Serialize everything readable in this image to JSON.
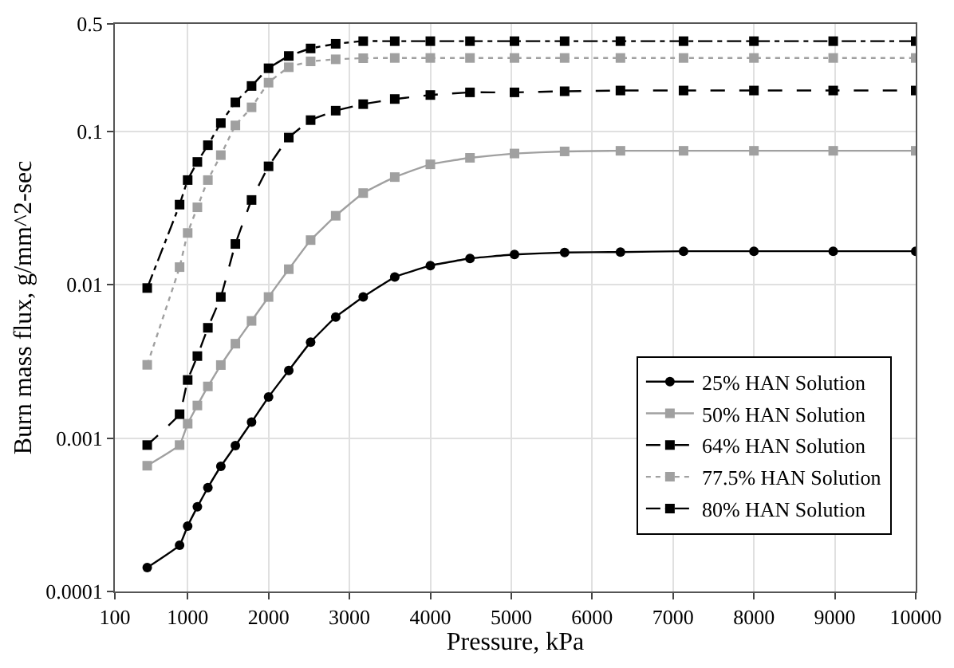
{
  "chart_data": {
    "type": "line",
    "xlabel": "Pressure, kPa",
    "ylabel": "Burn mass flux, g/mm^2-sec",
    "x": [
      500,
      900,
      1000,
      1120,
      1250,
      1410,
      1590,
      1790,
      2000,
      2250,
      2520,
      2830,
      3170,
      3560,
      4000,
      4490,
      5040,
      5660,
      6350,
      7130,
      8000,
      8980,
      10000
    ],
    "series": [
      {
        "name": "25% HAN Solution",
        "color": "#000000",
        "marker": "circle",
        "line_style": "solid",
        "values": [
          0.000143,
          0.0002,
          0.000267,
          0.000356,
          0.000475,
          0.000654,
          0.000893,
          0.00127,
          0.00185,
          0.00276,
          0.00422,
          0.00615,
          0.0083,
          0.0112,
          0.0133,
          0.0148,
          0.0157,
          0.0162,
          0.0163,
          0.0165,
          0.0165,
          0.0165,
          0.0165
        ]
      },
      {
        "name": "50% HAN Solution",
        "color": "#a0a0a0",
        "marker": "square",
        "line_style": "solid",
        "values": [
          0.00066,
          0.0009,
          0.00124,
          0.00163,
          0.00217,
          0.00299,
          0.00412,
          0.0058,
          0.0083,
          0.0126,
          0.0195,
          0.0281,
          0.0395,
          0.0502,
          0.0608,
          0.067,
          0.0715,
          0.0738,
          0.0745,
          0.0745,
          0.0745,
          0.0745,
          0.0745
        ]
      },
      {
        "name": "64% HAN Solution",
        "color": "#000000",
        "marker": "square",
        "line_style": "dashed",
        "values": [
          0.0009,
          0.00143,
          0.00239,
          0.00342,
          0.00523,
          0.0083,
          0.0184,
          0.0356,
          0.059,
          0.0908,
          0.118,
          0.136,
          0.15,
          0.162,
          0.172,
          0.179,
          0.179,
          0.182,
          0.184,
          0.184,
          0.184,
          0.184,
          0.184
        ]
      },
      {
        "name": "77.5% HAN Solution",
        "color": "#a0a0a0",
        "marker": "square",
        "line_style": "dotted",
        "values": [
          0.003,
          0.013,
          0.0217,
          0.0319,
          0.048,
          0.0698,
          0.109,
          0.143,
          0.207,
          0.261,
          0.285,
          0.294,
          0.299,
          0.3,
          0.3,
          0.3,
          0.3,
          0.3,
          0.3,
          0.3,
          0.3,
          0.3,
          0.3
        ]
      },
      {
        "name": "80% HAN Solution",
        "color": "#000000",
        "marker": "square",
        "line_style": "dashdot",
        "values": [
          0.0095,
          0.0332,
          0.048,
          0.063,
          0.081,
          0.113,
          0.154,
          0.197,
          0.257,
          0.309,
          0.346,
          0.371,
          0.386,
          0.386,
          0.386,
          0.386,
          0.386,
          0.386,
          0.386,
          0.386,
          0.386,
          0.386,
          0.386
        ]
      }
    ],
    "xlim": [
      100,
      10000
    ],
    "xticks": [
      100,
      1000,
      2000,
      3000,
      4000,
      5000,
      6000,
      7000,
      8000,
      9000,
      10000
    ],
    "ylim": [
      0.0001,
      0.5
    ],
    "yticks": [
      0.0001,
      0.001,
      0.01,
      0.1,
      0.5
    ],
    "log": "y",
    "grid": true,
    "legend": "bottom right"
  }
}
